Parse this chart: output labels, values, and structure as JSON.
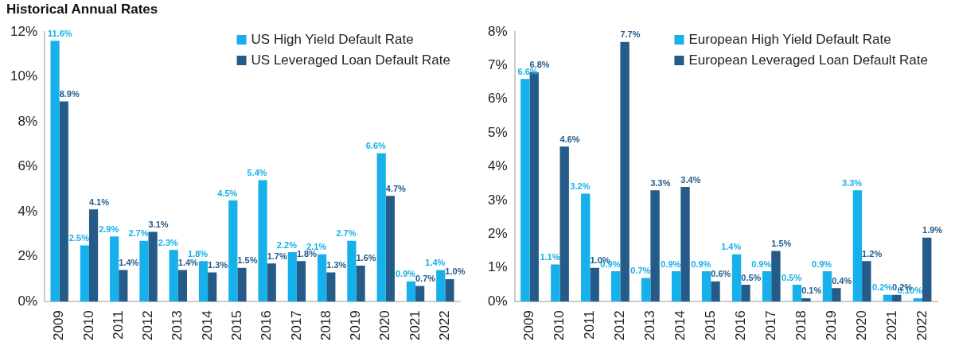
{
  "chart_data": [
    {
      "type": "bar",
      "title": "Historical Annual Rates",
      "categories": [
        "2009",
        "2010",
        "2011",
        "2012",
        "2013",
        "2014",
        "2015",
        "2016",
        "2017",
        "2018",
        "2019",
        "2020",
        "2021",
        "2022"
      ],
      "series": [
        {
          "name": "US High Yield Default Rate",
          "color": "#16b0ea",
          "values": [
            11.6,
            2.5,
            2.9,
            2.7,
            2.3,
            1.8,
            4.5,
            5.4,
            2.2,
            2.1,
            2.7,
            6.6,
            0.9,
            1.4
          ],
          "value_labels": [
            "11.6%",
            "2.5%",
            "2.9%",
            "2.7%",
            "2.3%",
            "1.8%",
            "4.5%",
            "5.4%",
            "2.2%",
            "2.1%",
            "2.7%",
            "6.6%",
            "0.9%",
            "1.4%"
          ]
        },
        {
          "name": "US Leveraged Loan Default Rate",
          "color": "#245b88",
          "values": [
            8.9,
            4.1,
            1.4,
            3.1,
            1.4,
            1.3,
            1.5,
            1.7,
            1.8,
            1.3,
            1.6,
            4.7,
            0.7,
            1.0
          ],
          "value_labels": [
            "8.9%",
            "4.1%",
            "1.4%",
            "3.1%",
            "1.4%",
            "1.3%",
            "1.5%",
            "1.7%",
            "1.8%",
            "1.3%",
            "1.6%",
            "4.7%",
            "0.7%",
            "1.0%"
          ]
        }
      ],
      "ylim": [
        0,
        12
      ],
      "yticks": [
        {
          "value": 0,
          "label": "0%"
        },
        {
          "value": 2,
          "label": "2%"
        },
        {
          "value": 4,
          "label": "4%"
        },
        {
          "value": 6,
          "label": "6%"
        },
        {
          "value": 8,
          "label": "8%"
        },
        {
          "value": 10,
          "label": "10%"
        },
        {
          "value": 12,
          "label": "12%"
        }
      ],
      "grid": false,
      "legend": "top right"
    },
    {
      "type": "bar",
      "categories": [
        "2009",
        "2010",
        "2011",
        "2012",
        "2013",
        "2014",
        "2015",
        "2016",
        "2017",
        "2018",
        "2019",
        "2020",
        "2021",
        "2022"
      ],
      "series": [
        {
          "name": "European High Yield Default Rate",
          "color": "#16b0ea",
          "values": [
            6.6,
            1.1,
            3.2,
            0.9,
            0.7,
            0.9,
            0.9,
            1.4,
            0.9,
            0.5,
            0.9,
            3.3,
            0.2,
            0.1
          ],
          "value_labels": [
            "6.6%",
            "1.1%",
            "3.2%",
            "0.9%",
            "0.7%",
            "0.9%",
            "0.9%",
            "1.4%",
            "0.9%",
            "0.5%",
            "0.9%",
            "3.3%",
            "0.2%",
            "0.10%"
          ]
        },
        {
          "name": "European Leveraged Loan Default Rate",
          "color": "#245b88",
          "values": [
            6.8,
            4.6,
            1.0,
            7.7,
            3.3,
            3.4,
            0.6,
            0.5,
            1.5,
            0.1,
            0.4,
            1.2,
            0.2,
            1.9
          ],
          "value_labels": [
            "6.8%",
            "4.6%",
            "1.0%",
            "7.7%",
            "3.3%",
            "3.4%",
            "0.6%",
            "0.5%",
            "1.5%",
            "0.1%",
            "0.4%",
            "1.2%",
            "0.2%",
            "1.9%"
          ]
        }
      ],
      "ylim": [
        0,
        8
      ],
      "yticks": [
        {
          "value": 0,
          "label": "0%"
        },
        {
          "value": 1,
          "label": "1%"
        },
        {
          "value": 2,
          "label": "2%"
        },
        {
          "value": 3,
          "label": "3%"
        },
        {
          "value": 4,
          "label": "4%"
        },
        {
          "value": 5,
          "label": "5%"
        },
        {
          "value": 6,
          "label": "6%"
        },
        {
          "value": 7,
          "label": "7%"
        },
        {
          "value": 8,
          "label": "8%"
        }
      ],
      "grid": false,
      "legend": "top right"
    }
  ]
}
